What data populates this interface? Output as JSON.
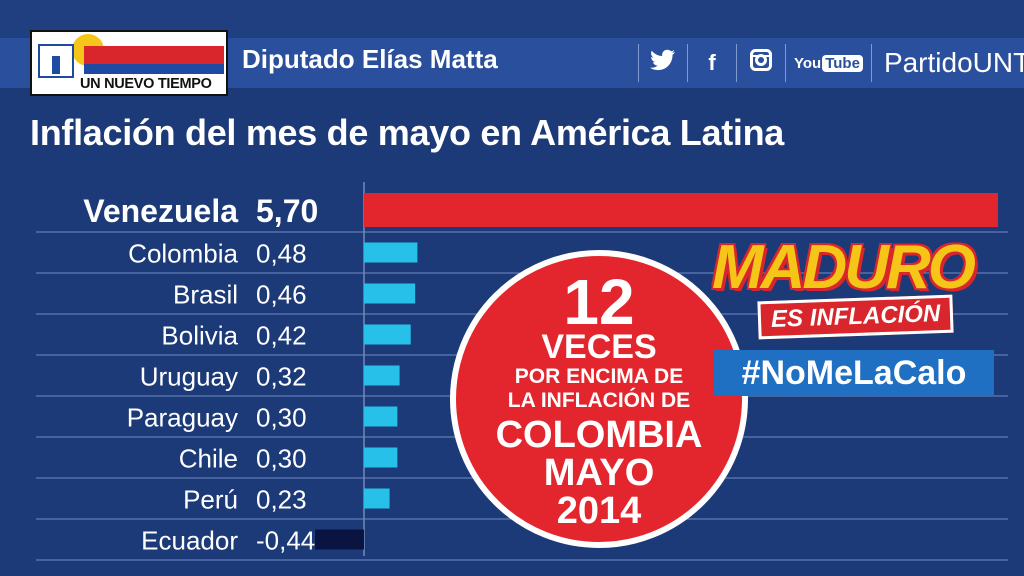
{
  "header": {
    "logo_text": "UN NUEVO TIEMPO",
    "deputy": "Diputado Elías Matta",
    "social": {
      "icons": [
        "twitter-icon",
        "facebook-icon",
        "instagram-icon",
        "youtube-icon"
      ],
      "youtube_you": "You",
      "youtube_tube": "Tube",
      "facebook_glyph": "f",
      "party": "PartidoUNT"
    }
  },
  "title": "Inflación del mes de mayo en América Latina",
  "badge": {
    "number": "12",
    "line2": "VECES",
    "line3": "POR ENCIMA DE",
    "line4": "LA INFLACIÓN DE",
    "line5": "COLOMBIA",
    "line6": "MAYO",
    "line7": "2014"
  },
  "campaign": {
    "maduro": "MADURO",
    "es_inflacion": "ES INFLACIÓN",
    "hashtag": "#NoMeLaCalo"
  },
  "colors": {
    "background": "#1d3a78",
    "highlight_bar": "#e3262d",
    "bar": "#27c0e8",
    "negative_bar": "#0b1440",
    "grid": "#6f8cc8"
  },
  "chart_data": {
    "type": "bar",
    "orientation": "horizontal",
    "categories": [
      "Venezuela",
      "Colombia",
      "Brasil",
      "Bolivia",
      "Uruguay",
      "Paraguay",
      "Chile",
      "Perú",
      "Ecuador"
    ],
    "values": [
      5.7,
      0.48,
      0.46,
      0.42,
      0.32,
      0.3,
      0.3,
      0.23,
      -0.44
    ],
    "value_labels": [
      "5,70",
      "0,48",
      "0,46",
      "0,42",
      "0,32",
      "0,30",
      "0,30",
      "0,23",
      "-0,44"
    ],
    "highlight": "Venezuela",
    "title": "Inflación del mes de mayo en América Latina",
    "xlabel": "",
    "ylabel": "",
    "xlim": [
      -0.44,
      5.7
    ],
    "grid": true
  }
}
